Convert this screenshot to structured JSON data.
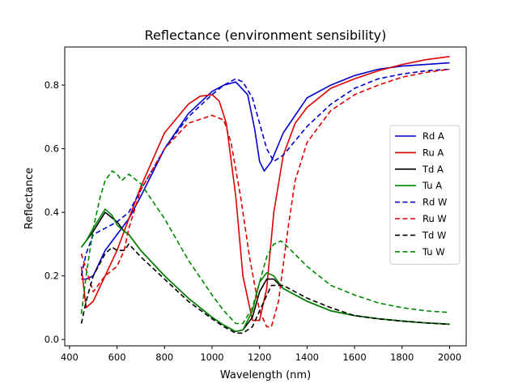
{
  "chart_data": {
    "type": "line",
    "title": "Reflectance (environment sensibility)",
    "xlabel": "Wavelength (nm)",
    "ylabel": "Reflectance",
    "xlim": [
      380,
      2070
    ],
    "ylim": [
      -0.02,
      0.92
    ],
    "xticks": [
      400,
      600,
      800,
      1000,
      1200,
      1400,
      1600,
      1800,
      2000
    ],
    "yticks": [
      0.0,
      0.2,
      0.4,
      0.6,
      0.8
    ],
    "xtick_labels": [
      "400",
      "600",
      "800",
      "1000",
      "1200",
      "1400",
      "1600",
      "1800",
      "2000"
    ],
    "ytick_labels": [
      "0.0",
      "0.2",
      "0.4",
      "0.6",
      "0.8"
    ],
    "grid": false,
    "legend_position": "center-right",
    "series": [
      {
        "name": "Rd A",
        "color": "#0000cc",
        "dash": "solid",
        "x": [
          450,
          470,
          500,
          550,
          600,
          650,
          700,
          800,
          900,
          1000,
          1050,
          1100,
          1150,
          1180,
          1200,
          1220,
          1250,
          1300,
          1400,
          1500,
          1600,
          1700,
          1800,
          1900,
          2000
        ],
        "y": [
          0.19,
          0.19,
          0.2,
          0.28,
          0.33,
          0.38,
          0.45,
          0.6,
          0.71,
          0.78,
          0.8,
          0.81,
          0.77,
          0.66,
          0.56,
          0.53,
          0.56,
          0.65,
          0.76,
          0.8,
          0.83,
          0.85,
          0.86,
          0.865,
          0.87
        ]
      },
      {
        "name": "Ru A",
        "color": "#dd0000",
        "dash": "solid",
        "x": [
          450,
          470,
          500,
          550,
          600,
          650,
          700,
          800,
          900,
          950,
          1000,
          1030,
          1060,
          1100,
          1130,
          1170,
          1200,
          1230,
          1260,
          1300,
          1350,
          1400,
          1500,
          1600,
          1700,
          1800,
          1900,
          2000
        ],
        "y": [
          0.23,
          0.1,
          0.12,
          0.2,
          0.28,
          0.38,
          0.48,
          0.65,
          0.74,
          0.765,
          0.77,
          0.75,
          0.68,
          0.45,
          0.2,
          0.06,
          0.06,
          0.16,
          0.4,
          0.58,
          0.68,
          0.73,
          0.79,
          0.82,
          0.845,
          0.865,
          0.88,
          0.89
        ]
      },
      {
        "name": "Td A",
        "color": "#000000",
        "dash": "solid",
        "x": [
          450,
          470,
          500,
          550,
          600,
          630,
          650,
          700,
          800,
          900,
          1000,
          1050,
          1100,
          1130,
          1170,
          1200,
          1230,
          1260,
          1300,
          1400,
          1500,
          1600,
          1700,
          1800,
          1900,
          2000
        ],
        "y": [
          0.29,
          0.31,
          0.34,
          0.4,
          0.37,
          0.34,
          0.33,
          0.28,
          0.2,
          0.13,
          0.07,
          0.045,
          0.025,
          0.03,
          0.07,
          0.15,
          0.19,
          0.19,
          0.16,
          0.12,
          0.09,
          0.075,
          0.065,
          0.058,
          0.052,
          0.048
        ]
      },
      {
        "name": "Tu A",
        "color": "#008800",
        "dash": "solid",
        "x": [
          450,
          470,
          500,
          550,
          580,
          600,
          630,
          650,
          700,
          800,
          900,
          1000,
          1050,
          1100,
          1130,
          1170,
          1200,
          1230,
          1260,
          1300,
          1400,
          1500,
          1600,
          1700,
          1800,
          1900,
          2000
        ],
        "y": [
          0.29,
          0.31,
          0.35,
          0.41,
          0.39,
          0.36,
          0.34,
          0.33,
          0.28,
          0.2,
          0.13,
          0.07,
          0.045,
          0.025,
          0.03,
          0.09,
          0.18,
          0.21,
          0.2,
          0.16,
          0.12,
          0.09,
          0.075,
          0.065,
          0.058,
          0.052,
          0.048
        ]
      },
      {
        "name": "Rd W",
        "color": "#0000cc",
        "dash": "dashed",
        "x": [
          450,
          470,
          500,
          550,
          600,
          650,
          700,
          800,
          900,
          1000,
          1050,
          1100,
          1130,
          1170,
          1200,
          1230,
          1260,
          1300,
          1400,
          1500,
          1600,
          1700,
          1800,
          1900,
          2000
        ],
        "y": [
          0.2,
          0.27,
          0.33,
          0.35,
          0.37,
          0.4,
          0.47,
          0.6,
          0.7,
          0.77,
          0.8,
          0.82,
          0.81,
          0.76,
          0.68,
          0.6,
          0.56,
          0.58,
          0.67,
          0.74,
          0.79,
          0.82,
          0.835,
          0.845,
          0.85
        ]
      },
      {
        "name": "Ru W",
        "color": "#dd0000",
        "dash": "dashed",
        "x": [
          450,
          470,
          500,
          550,
          600,
          630,
          650,
          700,
          800,
          900,
          1000,
          1050,
          1080,
          1120,
          1160,
          1200,
          1230,
          1250,
          1280,
          1320,
          1350,
          1400,
          1500,
          1600,
          1700,
          1800,
          1900,
          2000
        ],
        "y": [
          0.27,
          0.22,
          0.15,
          0.2,
          0.23,
          0.28,
          0.35,
          0.47,
          0.6,
          0.68,
          0.705,
          0.69,
          0.62,
          0.45,
          0.25,
          0.09,
          0.04,
          0.04,
          0.12,
          0.35,
          0.5,
          0.62,
          0.72,
          0.77,
          0.8,
          0.825,
          0.84,
          0.85
        ]
      },
      {
        "name": "Td W",
        "color": "#000000",
        "dash": "dashed",
        "x": [
          450,
          470,
          500,
          550,
          580,
          600,
          630,
          650,
          700,
          800,
          900,
          1000,
          1050,
          1100,
          1130,
          1170,
          1200,
          1250,
          1300,
          1350,
          1400,
          1500,
          1600,
          1700,
          1800,
          1900,
          2000
        ],
        "y": [
          0.05,
          0.12,
          0.2,
          0.27,
          0.29,
          0.28,
          0.28,
          0.3,
          0.26,
          0.19,
          0.12,
          0.065,
          0.04,
          0.02,
          0.02,
          0.04,
          0.09,
          0.17,
          0.17,
          0.15,
          0.13,
          0.1,
          0.075,
          0.065,
          0.058,
          0.052,
          0.048
        ]
      },
      {
        "name": "Tu W",
        "color": "#008800",
        "dash": "dashed",
        "x": [
          450,
          470,
          500,
          530,
          550,
          580,
          600,
          620,
          650,
          700,
          800,
          900,
          1000,
          1050,
          1100,
          1130,
          1170,
          1200,
          1230,
          1260,
          1290,
          1320,
          1400,
          1500,
          1600,
          1700,
          1800,
          1900,
          2000
        ],
        "y": [
          0.08,
          0.2,
          0.35,
          0.45,
          0.5,
          0.53,
          0.52,
          0.5,
          0.52,
          0.49,
          0.38,
          0.25,
          0.14,
          0.09,
          0.05,
          0.05,
          0.1,
          0.18,
          0.26,
          0.3,
          0.31,
          0.29,
          0.23,
          0.17,
          0.14,
          0.115,
          0.1,
          0.09,
          0.085
        ]
      }
    ]
  }
}
